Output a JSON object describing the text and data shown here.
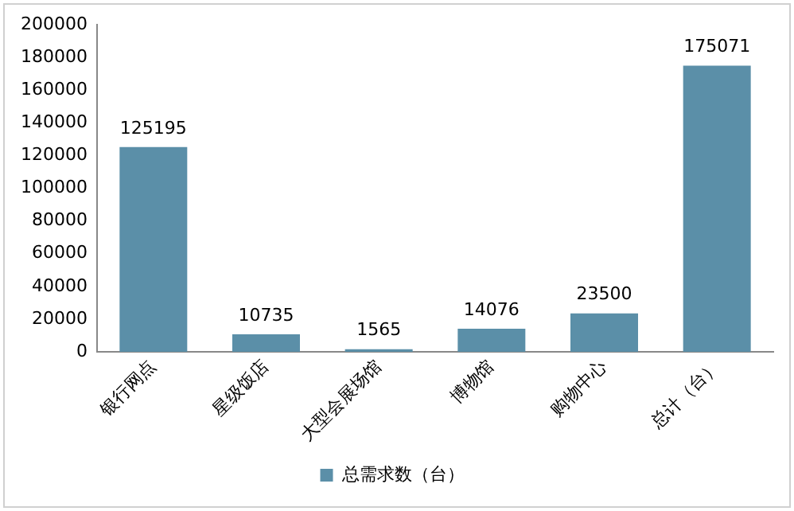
{
  "chart_data": {
    "type": "bar",
    "categories": [
      "银行网点",
      "星级饭店",
      "大型会展场馆",
      "博物馆",
      "购物中心",
      "总计（台）"
    ],
    "series": [
      {
        "name": "总需求数（台）",
        "color": "#5b8fa8",
        "values": [
          125195,
          10735,
          1565,
          14076,
          23500,
          175071
        ]
      }
    ],
    "ylim": [
      0,
      200000
    ],
    "yticks": [
      0,
      20000,
      40000,
      60000,
      80000,
      100000,
      120000,
      140000,
      160000,
      180000,
      200000
    ],
    "grid": false,
    "legend": "bottom",
    "data_labels": true
  }
}
